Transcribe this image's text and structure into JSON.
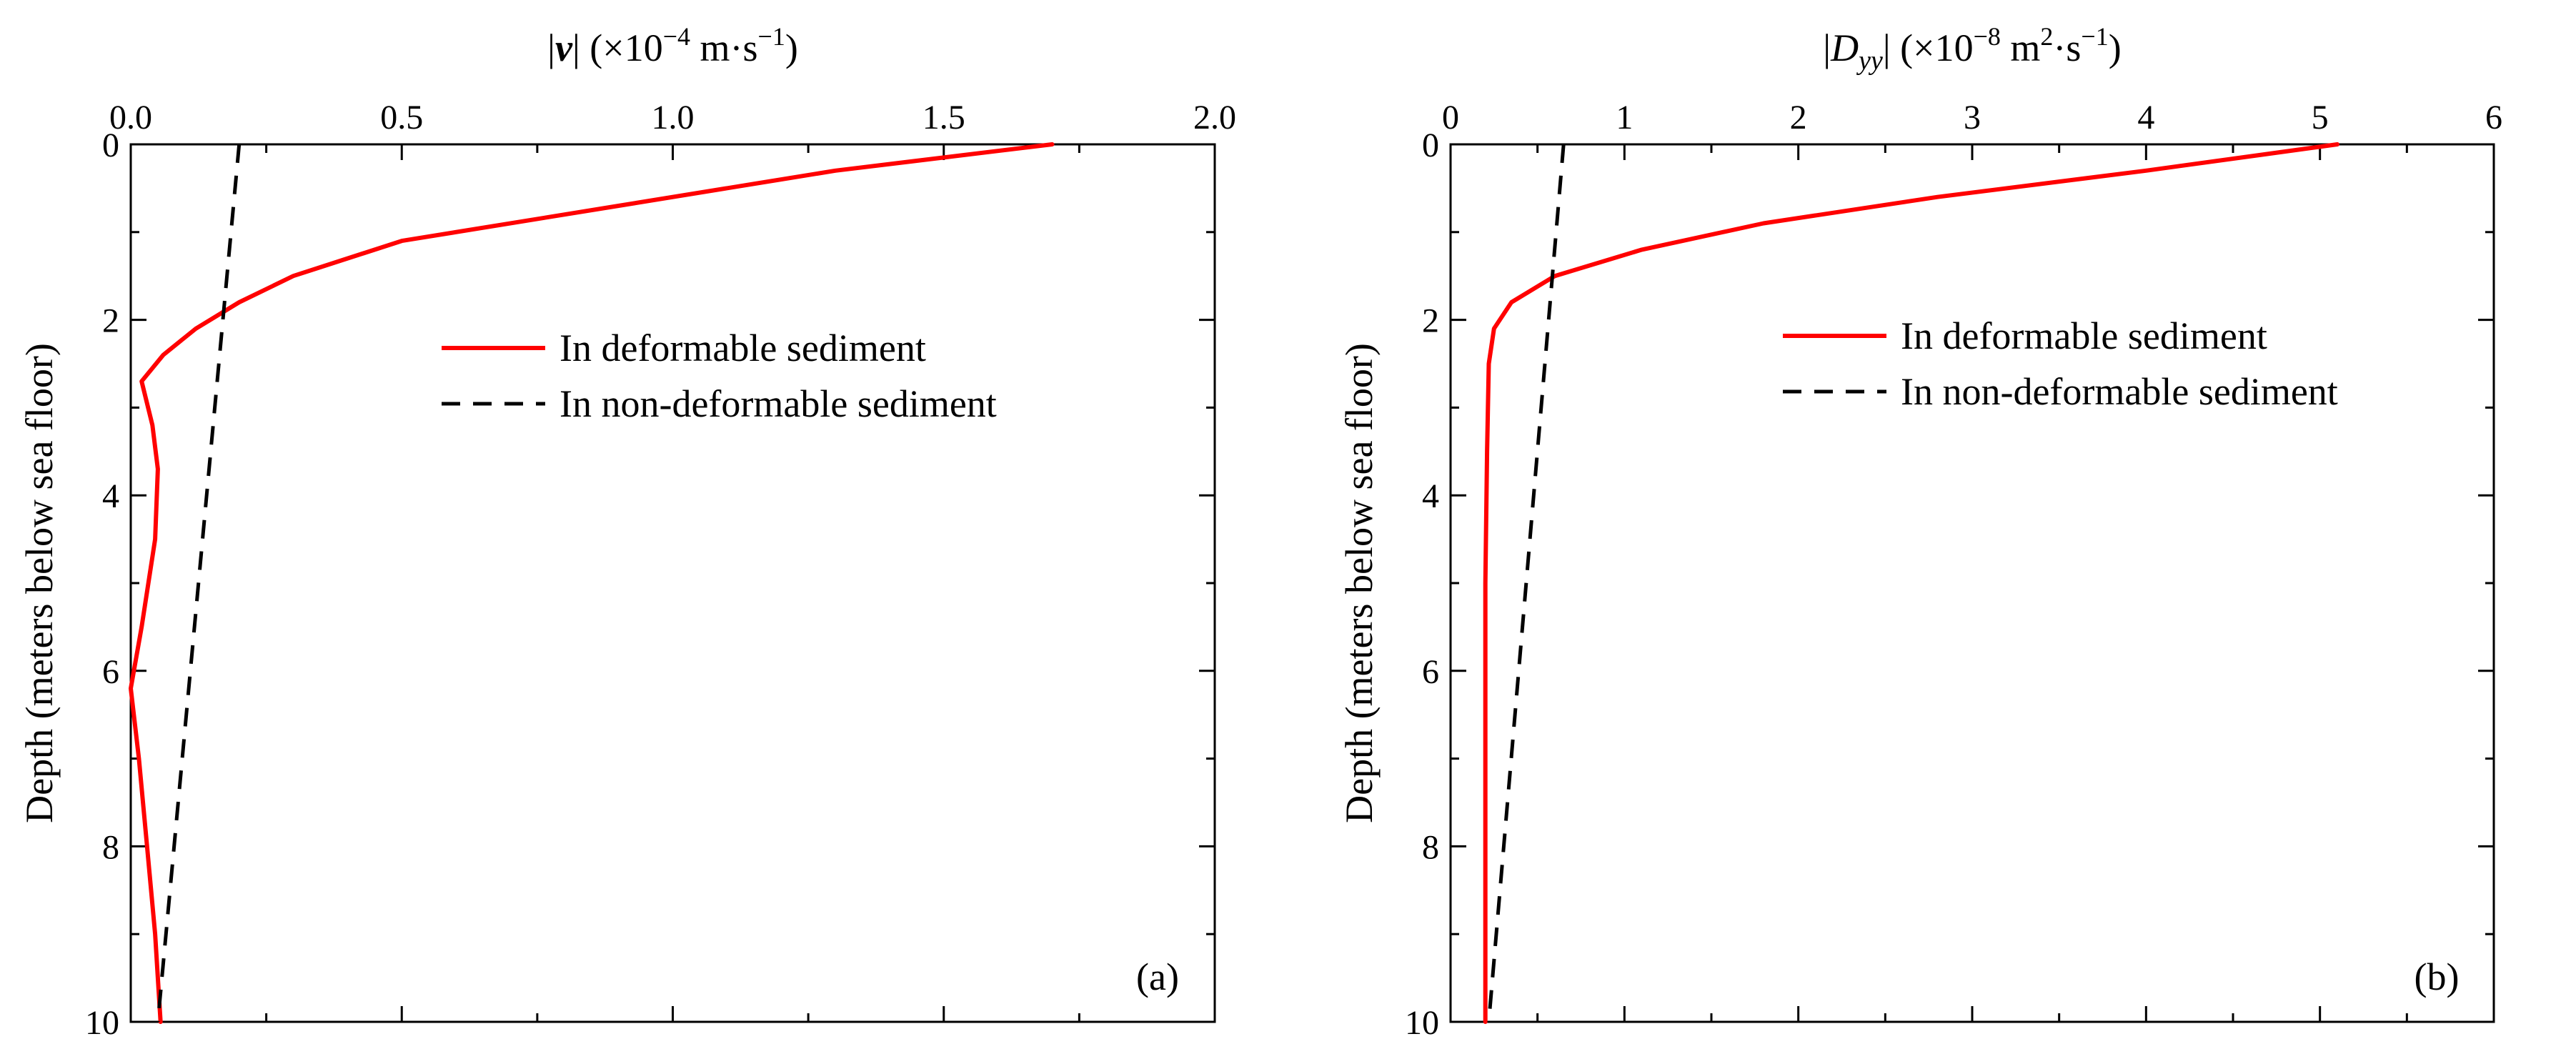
{
  "chart_data": [
    {
      "type": "line",
      "panel_label": "(a)",
      "xlabel": {
        "main": "|v| (×10",
        "exp": "−4",
        "units": " m·s",
        "units_exp": "−1",
        "close": ")"
      },
      "ylabel": "Depth (meters below sea floor)",
      "x_axis_position": "top",
      "y_inverted": true,
      "xlim": [
        0,
        2.0
      ],
      "ylim": [
        0,
        10
      ],
      "x_ticks": [
        "0.0",
        "0.5",
        "1.0",
        "1.5",
        "2.0"
      ],
      "x_tick_values": [
        0,
        0.5,
        1.0,
        1.5,
        2.0
      ],
      "y_ticks": [
        "0",
        "2",
        "4",
        "6",
        "8",
        "10"
      ],
      "y_tick_values": [
        0,
        2,
        4,
        6,
        8,
        10
      ],
      "legend_position": "center-right",
      "series": [
        {
          "name": "In deformable sediment",
          "color": "#ff0000",
          "style": "solid",
          "points": [
            [
              1.7,
              0
            ],
            [
              1.3,
              0.3
            ],
            [
              0.9,
              0.7
            ],
            [
              0.5,
              1.1
            ],
            [
              0.3,
              1.5
            ],
            [
              0.2,
              1.8
            ],
            [
              0.12,
              2.1
            ],
            [
              0.06,
              2.4
            ],
            [
              0.02,
              2.7
            ],
            [
              0.04,
              3.2
            ],
            [
              0.05,
              3.7
            ],
            [
              0.045,
              4.5
            ],
            [
              0.02,
              5.5
            ],
            [
              0.0,
              6.2
            ],
            [
              0.015,
              7.0
            ],
            [
              0.03,
              8.0
            ],
            [
              0.045,
              9.0
            ],
            [
              0.055,
              10
            ]
          ]
        },
        {
          "name": "In non-deformable sediment",
          "color": "#000000",
          "style": "dashed",
          "points": [
            [
              0.2,
              0
            ],
            [
              0.05,
              10
            ]
          ]
        }
      ]
    },
    {
      "type": "line",
      "panel_label": "(b)",
      "xlabel": {
        "main": "|D",
        "sub": "yy",
        "rest": "| (×10",
        "exp": "−8",
        "units": " m",
        "units_exp": "2",
        "units2": "·s",
        "units2_exp": "−1",
        "close": ")"
      },
      "ylabel": "Depth (meters below sea floor)",
      "x_axis_position": "top",
      "y_inverted": true,
      "xlim": [
        0,
        6
      ],
      "ylim": [
        0,
        10
      ],
      "x_ticks": [
        "0",
        "1",
        "2",
        "3",
        "4",
        "5",
        "6"
      ],
      "x_tick_values": [
        0,
        1,
        2,
        3,
        4,
        5,
        6
      ],
      "y_ticks": [
        "0",
        "2",
        "4",
        "6",
        "8",
        "10"
      ],
      "y_tick_values": [
        0,
        2,
        4,
        6,
        8,
        10
      ],
      "legend_position": "center-right",
      "series": [
        {
          "name": "In deformable sediment",
          "color": "#ff0000",
          "style": "solid",
          "points": [
            [
              5.1,
              0
            ],
            [
              4.0,
              0.3
            ],
            [
              2.8,
              0.6
            ],
            [
              1.8,
              0.9
            ],
            [
              1.1,
              1.2
            ],
            [
              0.6,
              1.5
            ],
            [
              0.35,
              1.8
            ],
            [
              0.25,
              2.1
            ],
            [
              0.22,
              2.5
            ],
            [
              0.21,
              3.5
            ],
            [
              0.2,
              5.0
            ],
            [
              0.2,
              7.0
            ],
            [
              0.2,
              10
            ]
          ]
        },
        {
          "name": "In non-deformable sediment",
          "color": "#000000",
          "style": "dashed",
          "points": [
            [
              0.65,
              0
            ],
            [
              0.22,
              10
            ]
          ]
        }
      ]
    }
  ]
}
